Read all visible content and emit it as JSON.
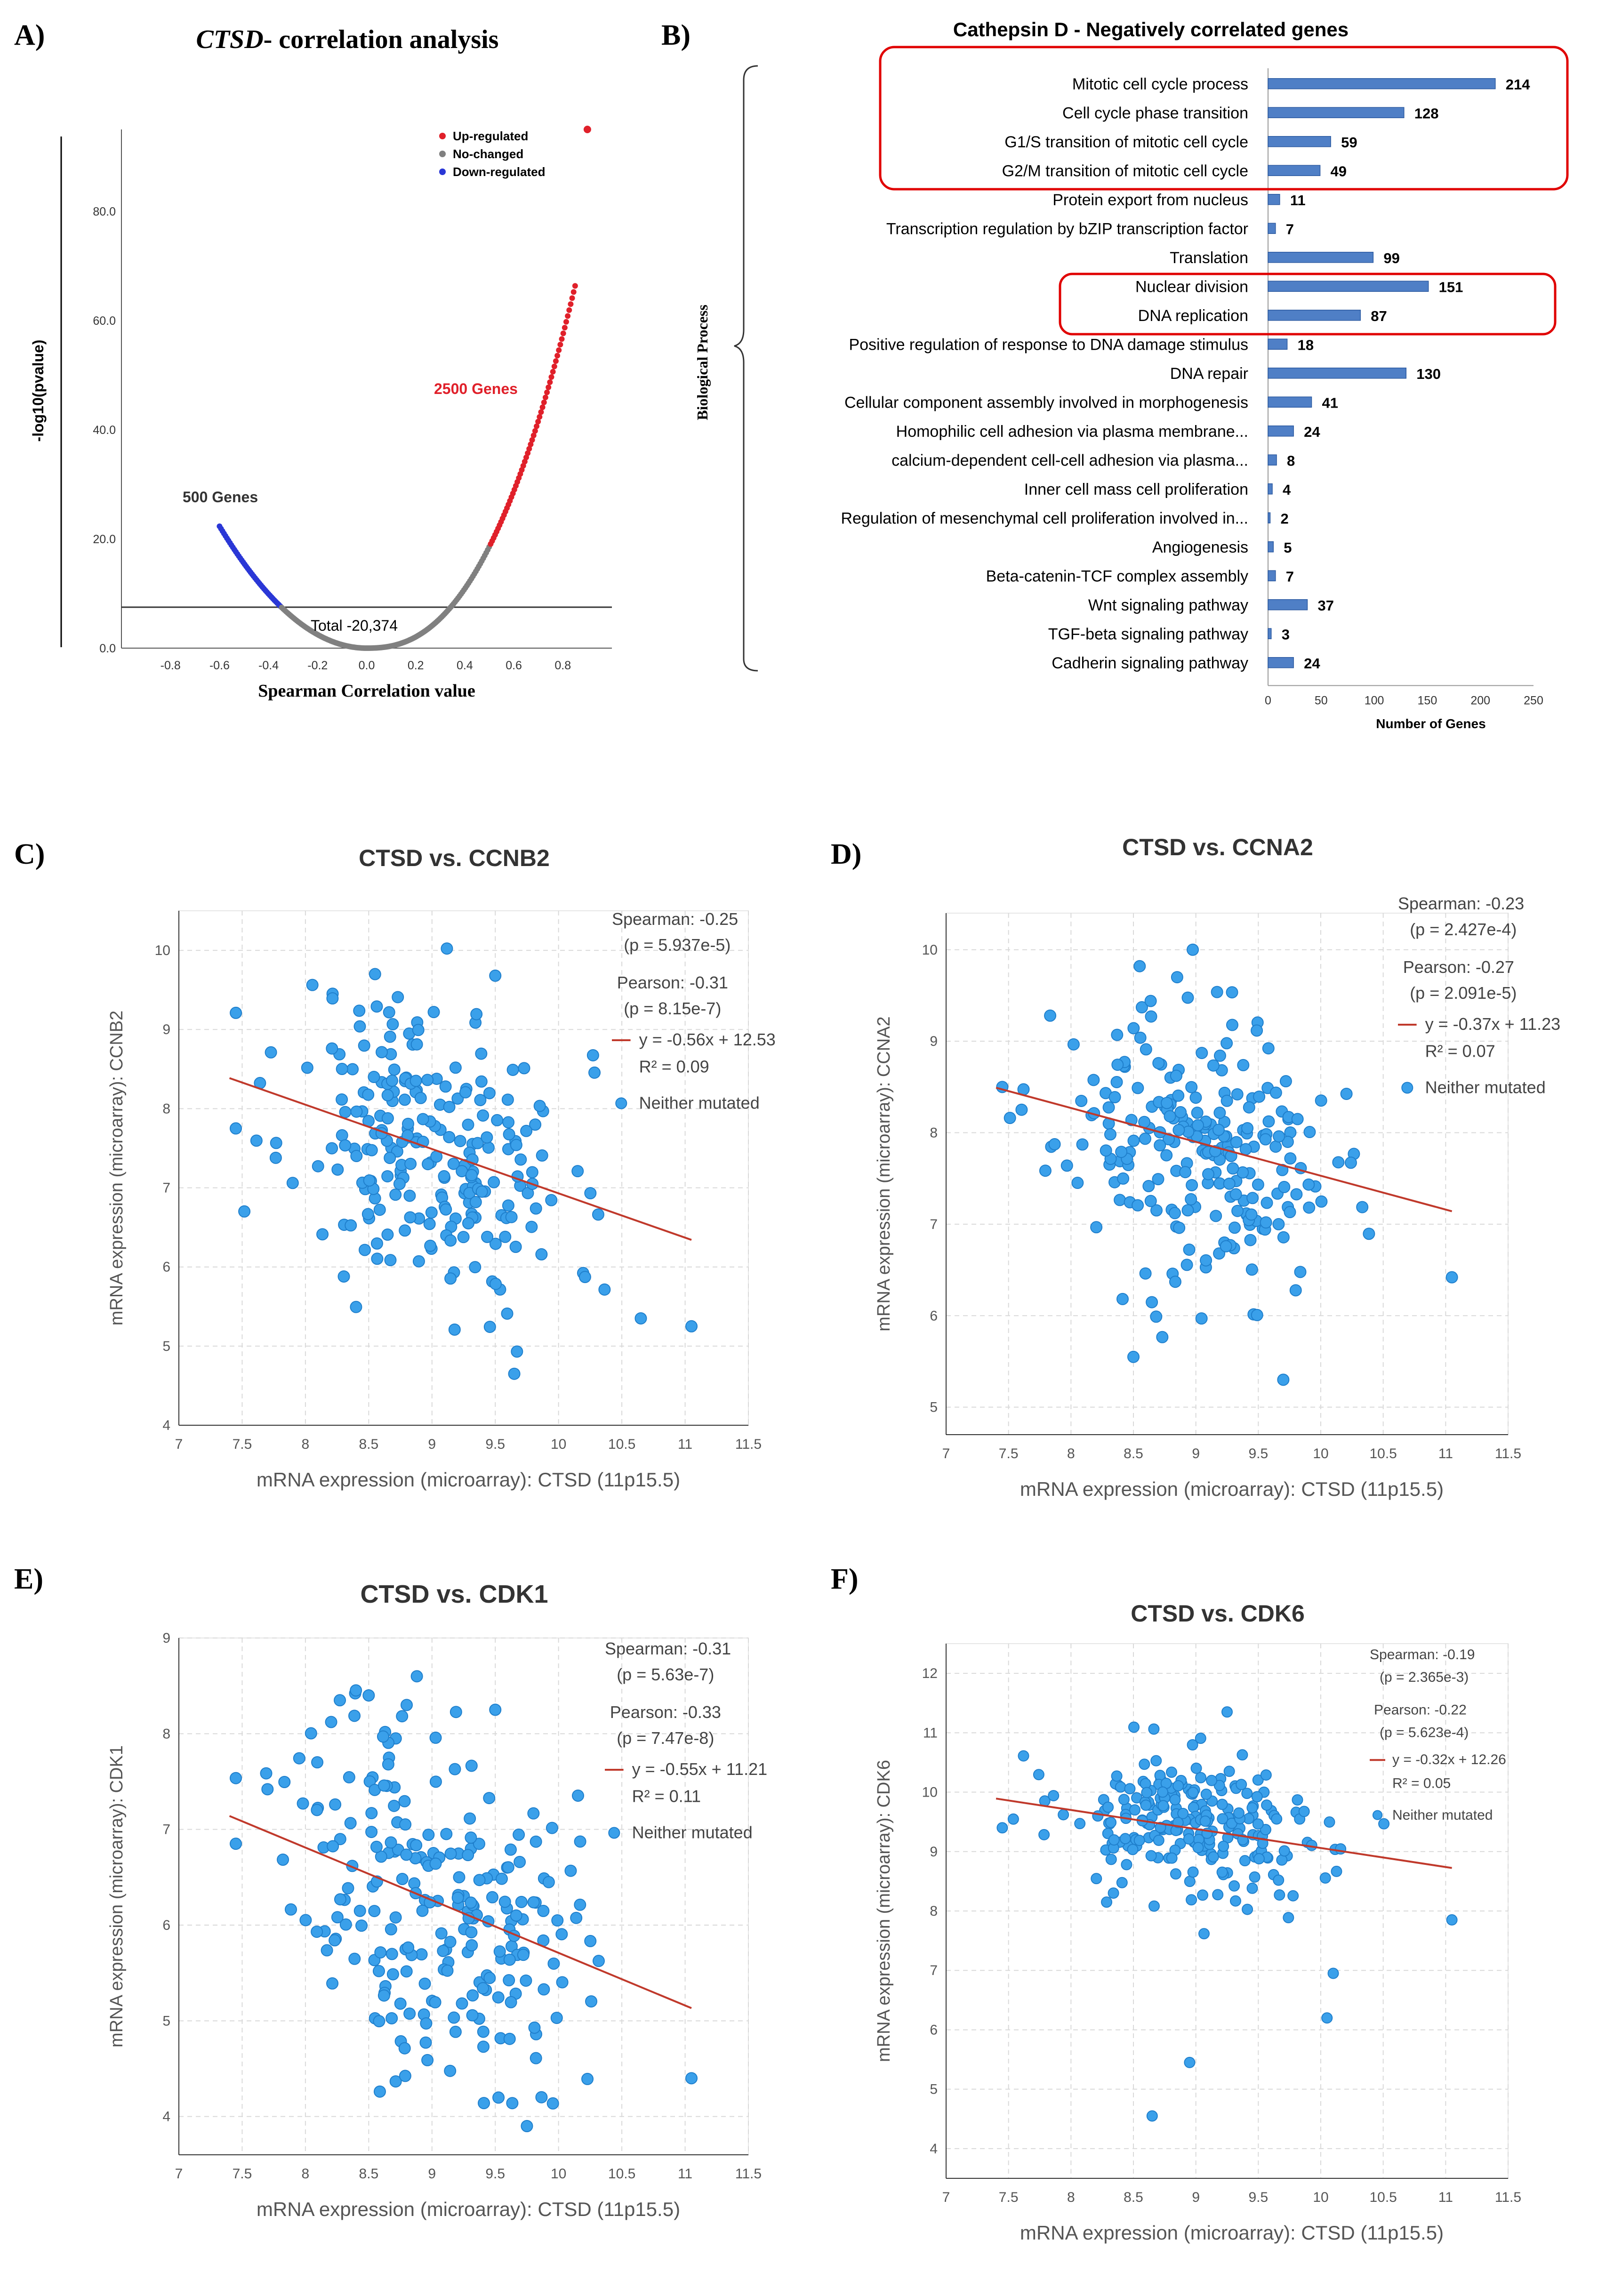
{
  "panel_labels": [
    "A)",
    "B)",
    "C)",
    "D)",
    "E)",
    "F)"
  ],
  "colors": {
    "up": "#e0202a",
    "nochange": "#808080",
    "down": "#2a37d6",
    "bar": "#4f7fc6",
    "bar_dark": "#2c5aa0",
    "scatter": "#3aa0ea",
    "scatter_edge": "#1f7fcc",
    "fit": "#c0392b",
    "highlight": "#e00000"
  },
  "chart_data": [
    {
      "id": "A",
      "type": "scatter",
      "title": "CTSD- correlation analysis",
      "title_italic_part": "CTSD",
      "title_rest": "- correlation analysis",
      "xlabel": "Spearman Correlation value",
      "ylabel": "-log10(pvalue)",
      "xlim": [
        -1.0,
        1.0
      ],
      "ylim": [
        0,
        95
      ],
      "xticks": [
        "-0.8",
        "-0.6",
        "-0.4",
        "-0.2",
        "0.0",
        "0.2",
        "0.4",
        "0.6",
        "0.8"
      ],
      "yticks": [
        "0.0",
        "20.0",
        "40.0",
        "60.0",
        "80.0"
      ],
      "legend": [
        "Up-regulated",
        "No-changed",
        "Down-regulated"
      ],
      "threshold": 7.5,
      "annotations": {
        "down": "500 Genes",
        "up": "2500 Genes",
        "total": "Total -20,374"
      },
      "outlier": [
        0.9,
        95
      ]
    },
    {
      "id": "B",
      "type": "bar",
      "title": "Cathepsin D - Negatively correlated genes",
      "ylabel": "Biological Process",
      "xlabel": "Number of Genes",
      "xlim": [
        0,
        250
      ],
      "xticks": [
        "0",
        "50",
        "100",
        "150",
        "200",
        "250"
      ],
      "categories": [
        "Mitotic cell cycle process",
        "Cell cycle phase transition",
        "G1/S transition of mitotic cell cycle",
        "G2/M transition of mitotic cell cycle",
        "Protein export from nucleus",
        "Transcription regulation by bZIP transcription factor",
        "Translation",
        "Nuclear division",
        "DNA replication",
        "Positive regulation of response to DNA damage stimulus",
        "DNA repair",
        "Cellular component assembly involved in morphogenesis",
        "Homophilic cell adhesion via plasma membrane...",
        "calcium-dependent cell-cell adhesion via plasma...",
        "Inner cell mass cell proliferation",
        "Regulation of mesenchymal cell proliferation involved in...",
        "Angiogenesis",
        "Beta-catenin-TCF complex assembly",
        "Wnt signaling pathway",
        "TGF-beta signaling pathway",
        "Cadherin signaling pathway"
      ],
      "values": [
        214,
        128,
        59,
        49,
        11,
        7,
        99,
        151,
        87,
        18,
        130,
        41,
        24,
        8,
        4,
        2,
        5,
        7,
        37,
        3,
        24
      ],
      "highlight_groups": [
        [
          0,
          3
        ],
        [
          7,
          8
        ]
      ]
    },
    {
      "id": "C",
      "type": "scatter",
      "title": "CTSD vs. CCNB2",
      "xlabel": "mRNA expression (microarray): CTSD (11p15.5)",
      "ylabel": "mRNA expression (microarray): CCNB2",
      "xlim": [
        7,
        11.5
      ],
      "ylim": [
        4,
        10.5
      ],
      "xticks": [
        "7",
        "7.5",
        "8",
        "8.5",
        "9",
        "9.5",
        "10",
        "10.5",
        "11",
        "11.5"
      ],
      "yticks": [
        "4",
        "5",
        "6",
        "7",
        "8",
        "9",
        "10"
      ],
      "spearman": "Spearman: -0.25",
      "spearman_p": "(p = 5.937e-5)",
      "pearson": "Pearson: -0.31",
      "pearson_p": "(p = 8.15e-7)",
      "equation": "y = -0.56x + 12.53",
      "r2": "R² = 0.09",
      "legend": "Neither mutated",
      "slope": -0.56,
      "intercept": 12.53,
      "fit_x": [
        7.4,
        11.05
      ],
      "x_center": 9.0,
      "x_sd": 0.55,
      "y_center": 7.5,
      "y_sd": 0.95,
      "seed": 11,
      "extra_points": [
        [
          8.55,
          9.7
        ],
        [
          9.5,
          9.68
        ],
        [
          9.65,
          4.65
        ],
        [
          11.05,
          5.25
        ],
        [
          7.45,
          7.75
        ],
        [
          10.65,
          5.35
        ]
      ]
    },
    {
      "id": "D",
      "type": "scatter",
      "title": "CTSD vs. CCNA2",
      "xlabel": "mRNA expression (microarray): CTSD (11p15.5)",
      "ylabel": "mRNA expression (microarray): CCNA2",
      "xlim": [
        7,
        11.5
      ],
      "ylim": [
        4.7,
        10.4
      ],
      "xticks": [
        "7",
        "7.5",
        "8",
        "8.5",
        "9",
        "9.5",
        "10",
        "10.5",
        "11",
        "11.5"
      ],
      "yticks": [
        "5",
        "6",
        "7",
        "8",
        "9",
        "10"
      ],
      "spearman": "Spearman: -0.23",
      "spearman_p": "(p = 2.427e-4)",
      "pearson": "Pearson: -0.27",
      "pearson_p": "(p = 2.091e-5)",
      "equation": "y = -0.37x + 11.23",
      "r2": "R² = 0.07",
      "legend": "Neither mutated",
      "slope": -0.37,
      "intercept": 11.23,
      "fit_x": [
        7.4,
        11.05
      ],
      "x_center": 9.0,
      "x_sd": 0.55,
      "y_center": 7.8,
      "y_sd": 0.72,
      "seed": 23,
      "extra_points": [
        [
          8.55,
          9.82
        ],
        [
          8.85,
          9.7
        ],
        [
          9.7,
          5.3
        ],
        [
          8.5,
          5.55
        ],
        [
          11.05,
          6.42
        ],
        [
          7.45,
          8.5
        ]
      ]
    },
    {
      "id": "E",
      "type": "scatter",
      "title": "CTSD vs. CDK1",
      "xlabel": "mRNA expression (microarray): CTSD (11p15.5)",
      "ylabel": "mRNA expression (microarray): CDK1",
      "xlim": [
        7,
        11.5
      ],
      "ylim": [
        3.6,
        9.0
      ],
      "xticks": [
        "7",
        "7.5",
        "8",
        "8.5",
        "9",
        "9.5",
        "10",
        "10.5",
        "11",
        "11.5"
      ],
      "yticks": [
        "4",
        "5",
        "6",
        "7",
        "8",
        "9"
      ],
      "spearman": "Spearman: -0.31",
      "spearman_p": "(p = 5.63e-7)",
      "pearson": "Pearson: -0.33",
      "pearson_p": "(p = 7.47e-8)",
      "equation": "y = -0.55x + 11.21",
      "r2": "R² = 0.11",
      "legend": "Neither mutated",
      "slope": -0.55,
      "intercept": 11.21,
      "fit_x": [
        7.4,
        11.05
      ],
      "x_center": 9.0,
      "x_sd": 0.55,
      "y_center": 6.3,
      "y_sd": 0.95,
      "seed": 37,
      "extra_points": [
        [
          8.5,
          8.4
        ],
        [
          8.8,
          8.3
        ],
        [
          9.5,
          8.25
        ],
        [
          9.75,
          3.9
        ],
        [
          11.05,
          4.4
        ],
        [
          7.45,
          6.85
        ]
      ]
    },
    {
      "id": "F",
      "type": "scatter",
      "title": "CTSD vs. CDK6",
      "xlabel": "mRNA expression (microarray): CTSD (11p15.5)",
      "ylabel": "mRNA expression (microarray): CDK6",
      "xlim": [
        7,
        11.5
      ],
      "ylim": [
        3.5,
        12.5
      ],
      "xticks": [
        "7",
        "7.5",
        "8",
        "8.5",
        "9",
        "9.5",
        "10",
        "10.5",
        "11",
        "11.5"
      ],
      "yticks": [
        "4",
        "5",
        "6",
        "7",
        "8",
        "9",
        "10",
        "11",
        "12"
      ],
      "spearman": "Spearman: -0.19",
      "spearman_p": "(p = 2.365e-3)",
      "pearson": "Pearson: -0.22",
      "pearson_p": "(p = 5.623e-4)",
      "equation": "y = -0.32x + 12.26",
      "r2": "R² = 0.05",
      "legend": "Neither mutated",
      "slope": -0.32,
      "intercept": 12.26,
      "fit_x": [
        7.4,
        11.05
      ],
      "x_center": 9.0,
      "x_sd": 0.55,
      "y_center": 9.4,
      "y_sd": 0.62,
      "seed": 53,
      "extra_points": [
        [
          8.65,
          4.55
        ],
        [
          8.95,
          5.45
        ],
        [
          10.05,
          6.2
        ],
        [
          10.1,
          6.95
        ],
        [
          9.25,
          11.35
        ],
        [
          11.05,
          7.85
        ],
        [
          7.45,
          9.4
        ]
      ]
    }
  ]
}
